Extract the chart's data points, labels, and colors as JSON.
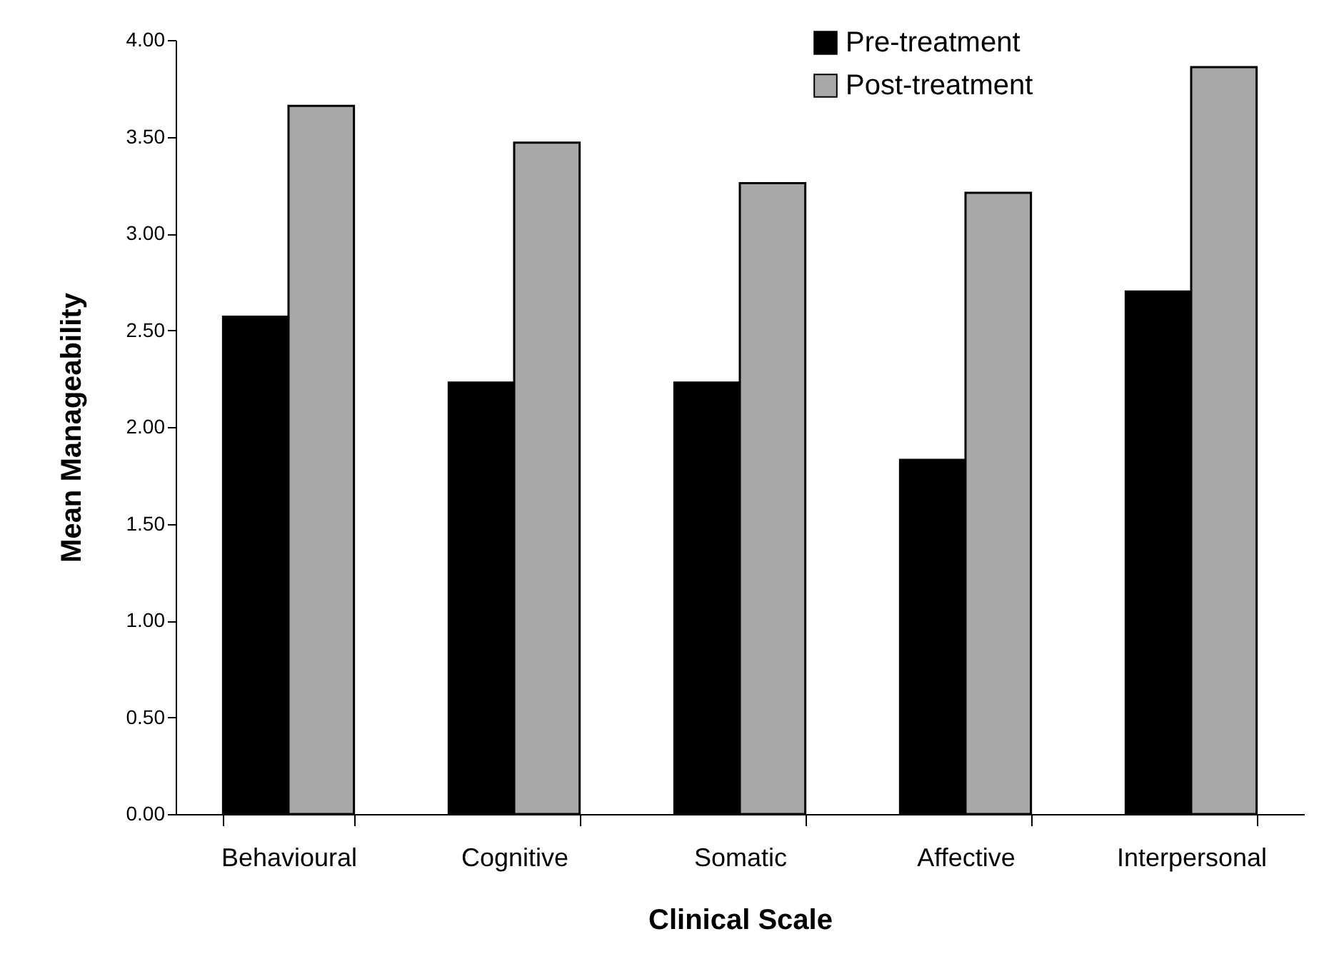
{
  "chart_data": {
    "type": "bar",
    "xlabel": "Clinical Scale",
    "ylabel": "Mean Manageability",
    "categories": [
      "Behavioural",
      "Cognitive",
      "Somatic",
      "Affective",
      "Interpersonal"
    ],
    "series": [
      {
        "name": "Pre-treatment",
        "color": "#000000",
        "values": [
          2.57,
          2.23,
          2.23,
          1.83,
          2.7
        ]
      },
      {
        "name": "Post-treatment",
        "color": "#a8a8a8",
        "values": [
          3.66,
          3.47,
          3.26,
          3.21,
          3.86
        ]
      }
    ],
    "ylim": [
      0,
      4
    ],
    "yticks": [
      {
        "value": 0,
        "label": "0.00"
      },
      {
        "value": 0.5,
        "label": "0.50"
      },
      {
        "value": 1,
        "label": "1.00"
      },
      {
        "value": 1.5,
        "label": "1.50"
      },
      {
        "value": 2,
        "label": "2.00"
      },
      {
        "value": 2.5,
        "label": "2.50"
      },
      {
        "value": 3,
        "label": "3.00"
      },
      {
        "value": 3.5,
        "label": "3.50"
      },
      {
        "value": 4,
        "label": "4.00"
      }
    ],
    "grid": false,
    "legend": "top right"
  }
}
